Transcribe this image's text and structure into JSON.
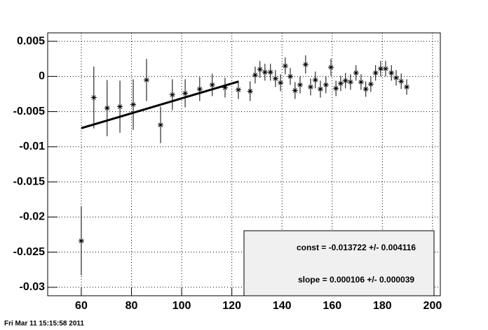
{
  "chart_data": {
    "type": "scatter",
    "x": [
      60,
      65,
      70.3,
      75.4,
      80.7,
      86,
      91.6,
      96.3,
      101.4,
      107.2,
      112.2,
      117.3,
      122.6,
      127.3,
      129.3,
      131.2,
      133.2,
      135.4,
      137.4,
      139.4,
      141.3,
      143.3,
      145.2,
      147.2,
      149.4,
      151.4,
      153.3,
      155.3,
      157.5,
      159.5,
      161.5,
      163.4,
      165.3,
      167.3,
      169.5,
      171.5,
      173.4,
      175.4,
      177.3,
      179.3,
      181.3,
      183.6,
      185.5,
      187.5,
      189.7
    ],
    "series": [
      {
        "color": "#000000",
        "values": [
          -0.0234,
          -0.003,
          -0.0045,
          -0.0043,
          -0.004,
          -0.0005,
          -0.0069,
          -0.0026,
          -0.0024,
          -0.0018,
          -0.0012,
          -0.0016,
          -0.0019,
          -0.0021,
          0.0002,
          0.001,
          0.0006,
          0.0006,
          -0.0003,
          -0.0009,
          0.0015,
          0.0,
          -0.002,
          -0.0012,
          0.0017,
          -0.0015,
          -0.0005,
          -0.0018,
          -0.0012,
          0.0013,
          -0.0017,
          -0.001,
          -0.0006,
          -0.0008,
          0.0005,
          -0.0008,
          -0.0018,
          -0.0011,
          0.0005,
          0.0011,
          0.0011,
          0.0005,
          -0.0002,
          -0.0007,
          -0.0015
        ],
        "errors": [
          0.0049,
          0.0044,
          0.004,
          0.0037,
          0.0036,
          0.003,
          0.0026,
          0.0022,
          0.002,
          0.0017,
          0.0016,
          0.0014,
          0.0013,
          0.0014,
          0.0012,
          0.0012,
          0.0012,
          0.0012,
          0.0012,
          0.0012,
          0.0012,
          0.0012,
          0.0012,
          0.0012,
          0.0013,
          0.0012,
          0.0012,
          0.0012,
          0.0012,
          0.0012,
          0.0011,
          0.0011,
          0.0011,
          0.0011,
          0.0011,
          0.0011,
          0.0011,
          0.0011,
          0.0011,
          0.0011,
          0.0011,
          0.0011,
          0.0011,
          0.0011,
          0.0011
        ]
      }
    ],
    "fit": {
      "x": [
        60,
        122.6
      ],
      "values": [
        -0.00736,
        -0.00073
      ]
    },
    "xlim": [
      46.6,
      203.1
    ],
    "ylim": [
      -0.0312,
      0.0062
    ],
    "xticks": [
      60,
      80,
      100,
      120,
      140,
      160,
      180,
      200
    ],
    "yticks": [
      0.005,
      0,
      -0.005,
      -0.01,
      -0.015,
      -0.02,
      -0.025,
      -0.03
    ],
    "grid": true,
    "stats": [
      "const = -0.013722 +/- 0.004116",
      "slope = 0.000106 +/- 0.000039"
    ],
    "timestamp": "Fri Mar 11 15:15:58 2011"
  }
}
